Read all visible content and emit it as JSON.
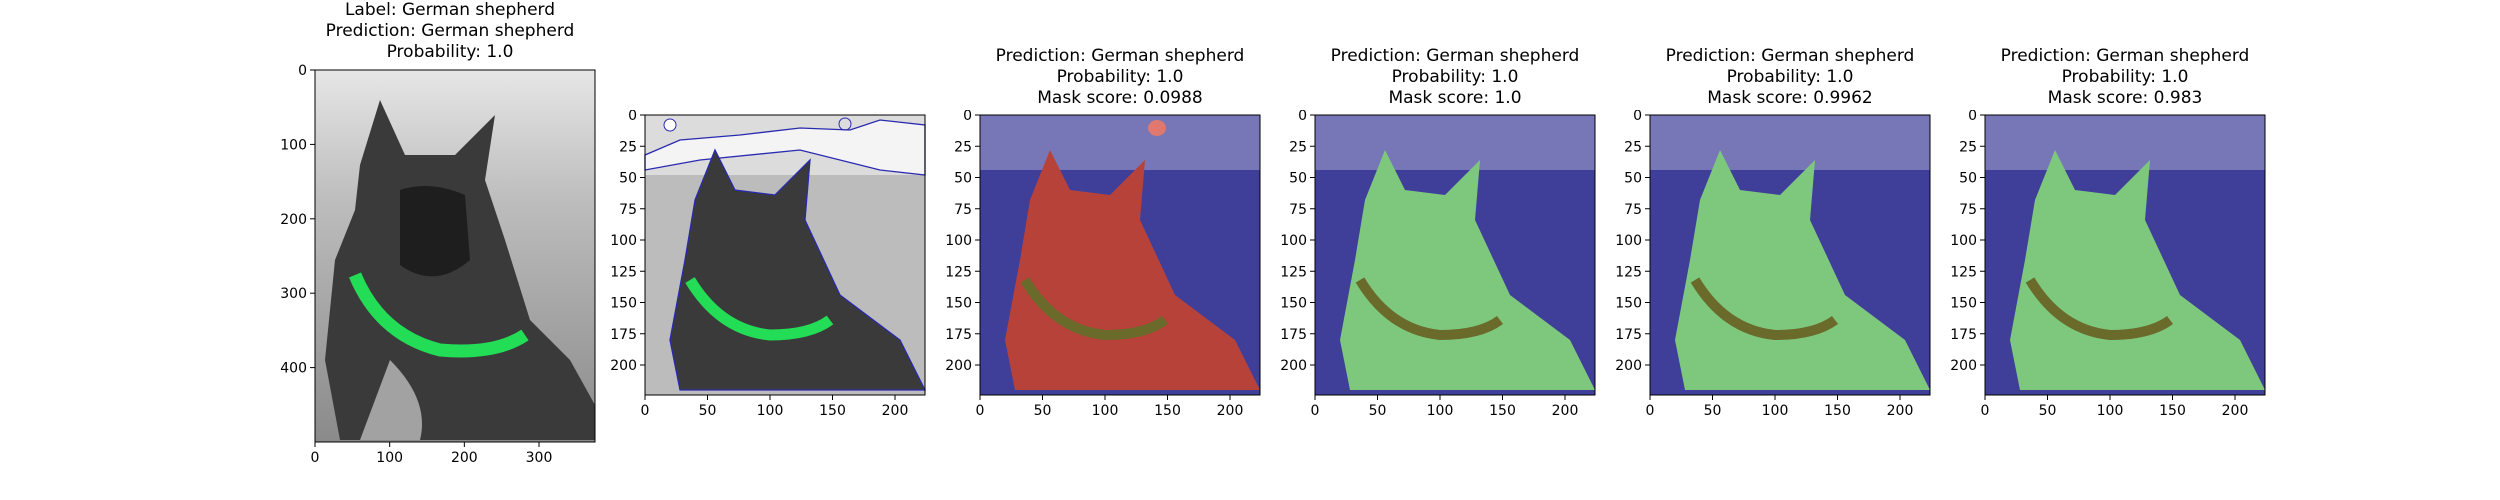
{
  "panels": [
    {
      "id": "original",
      "title_lines": [
        "Label: German shepherd",
        "Prediction: German shepherd",
        "Probability: 1.0"
      ],
      "x_ticks": [
        "0",
        "100",
        "200",
        "300"
      ],
      "y_ticks": [
        "0",
        "100",
        "200",
        "300",
        "400"
      ]
    },
    {
      "id": "segments",
      "title_lines": [],
      "x_ticks": [
        "0",
        "50",
        "100",
        "150",
        "200"
      ],
      "y_ticks": [
        "0",
        "25",
        "50",
        "75",
        "100",
        "125",
        "150",
        "175",
        "200"
      ]
    },
    {
      "id": "mask1",
      "title_lines": [
        "Prediction: German shepherd",
        "Probability: 1.0",
        "Mask score: 0.0988"
      ],
      "x_ticks": [
        "0",
        "50",
        "100",
        "150",
        "200"
      ],
      "y_ticks": [
        "0",
        "25",
        "50",
        "75",
        "100",
        "125",
        "150",
        "175",
        "200"
      ]
    },
    {
      "id": "mask2",
      "title_lines": [
        "Prediction: German shepherd",
        "Probability: 1.0",
        "Mask score: 1.0"
      ],
      "x_ticks": [
        "0",
        "50",
        "100",
        "150",
        "200"
      ],
      "y_ticks": [
        "0",
        "25",
        "50",
        "75",
        "100",
        "125",
        "150",
        "175",
        "200"
      ]
    },
    {
      "id": "mask3",
      "title_lines": [
        "Prediction: German shepherd",
        "Probability: 1.0",
        "Mask score: 0.9962"
      ],
      "x_ticks": [
        "0",
        "50",
        "100",
        "150",
        "200"
      ],
      "y_ticks": [
        "0",
        "25",
        "50",
        "75",
        "100",
        "125",
        "150",
        "175",
        "200"
      ]
    },
    {
      "id": "mask4",
      "title_lines": [
        "Prediction: German shepherd",
        "Probability: 1.0",
        "Mask score: 0.983"
      ],
      "x_ticks": [
        "0",
        "50",
        "100",
        "150",
        "200"
      ],
      "y_ticks": [
        "0",
        "25",
        "50",
        "75",
        "100",
        "125",
        "150",
        "175",
        "200"
      ]
    }
  ],
  "colors": {
    "background_blue": "#3f3f9a",
    "mask_red": "#b7423a",
    "mask_green": "#7ec87e",
    "collar_green": "#22dd55",
    "grayscale_bg": "#b8b8b8"
  }
}
